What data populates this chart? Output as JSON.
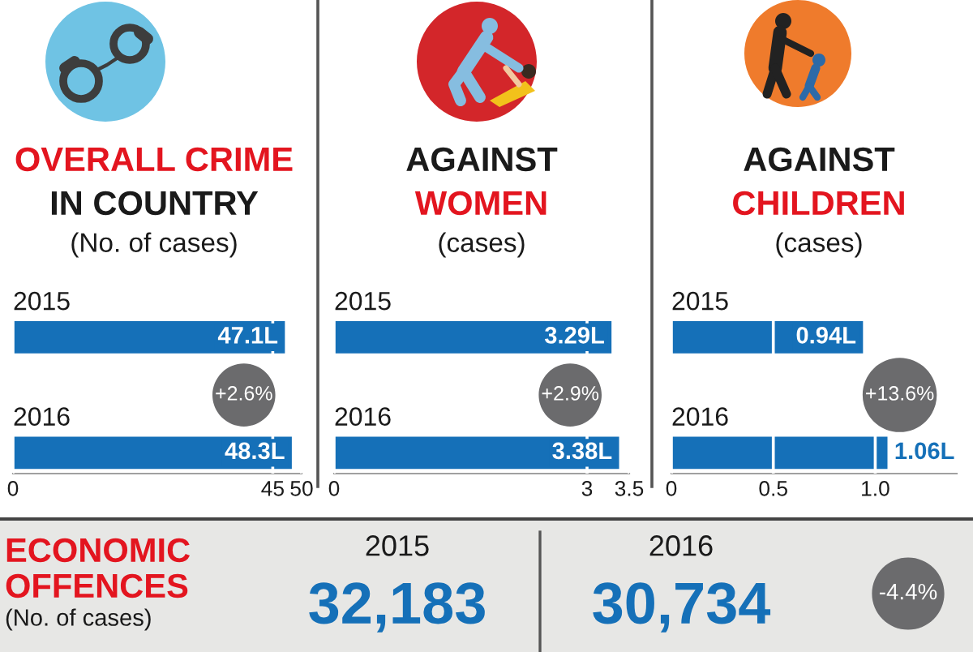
{
  "chart_data": [
    {
      "type": "bar",
      "orientation": "horizontal",
      "title": "OVERALL CRIME\nIN COUNTRY",
      "subtitle": "(No. of cases)",
      "categories": [
        "2015",
        "2016"
      ],
      "values": [
        47.1,
        48.3
      ],
      "value_labels": [
        "47.1L",
        "48.3L"
      ],
      "color": "#1570b8",
      "xlim": [
        0,
        50
      ],
      "xticks": [
        0,
        45,
        50
      ],
      "grid": "x",
      "annotations": [
        "+2.6%"
      ]
    },
    {
      "type": "bar",
      "orientation": "horizontal",
      "title": "AGAINST\nWOMEN",
      "subtitle": "(cases)",
      "categories": [
        "2015",
        "2016"
      ],
      "values": [
        3.29,
        3.38
      ],
      "value_labels": [
        "3.29L",
        "3.38L"
      ],
      "color": "#1570b8",
      "xlim": [
        0,
        3.5
      ],
      "xticks": [
        0,
        3,
        3.5
      ],
      "grid": "x",
      "annotations": [
        "+2.9%"
      ]
    },
    {
      "type": "bar",
      "orientation": "horizontal",
      "title": "AGAINST\nCHILDREN",
      "subtitle": "(cases)",
      "categories": [
        "2015",
        "2016"
      ],
      "values": [
        0.94,
        1.06
      ],
      "value_labels": [
        "0.94L",
        "1.06L"
      ],
      "color": "#1570b8",
      "xlim": [
        0,
        1.4
      ],
      "xticks": [
        0,
        0.5,
        {
          "value": 1,
          "label": "1.0"
        }
      ],
      "grid": "x",
      "annotations": [
        "+13.6%"
      ]
    },
    {
      "type": "other",
      "title": "ECONOMIC\nOFFENCES",
      "subtitle": "(No. of cases)",
      "categories": [
        "2015",
        "2016"
      ],
      "values": [
        32183,
        30734
      ],
      "value_labels": [
        "32,183",
        "30,734"
      ],
      "annotations": [
        "-4.4%"
      ]
    }
  ]
}
